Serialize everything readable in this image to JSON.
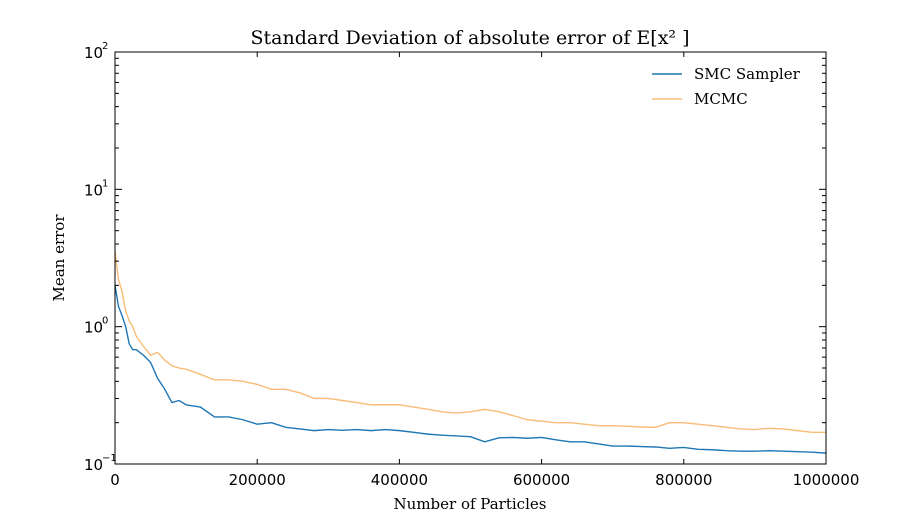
{
  "chart_data": {
    "type": "line",
    "title": "Standard Deviation of absolute error of E[x² ]",
    "xlabel": "Number of Particles",
    "ylabel": "Mean error",
    "xlim": [
      0,
      1000000
    ],
    "ylim": [
      0.1,
      100
    ],
    "yscale": "log",
    "x_ticks": [
      0,
      200000,
      400000,
      600000,
      800000,
      1000000
    ],
    "x_tick_labels": [
      "0",
      "200000",
      "400000",
      "600000",
      "800000",
      "1000000"
    ],
    "y_ticks": [
      {
        "value": 0.1,
        "base": "10",
        "exp": "−1"
      },
      {
        "value": 1,
        "base": "10",
        "exp": "0"
      },
      {
        "value": 10,
        "base": "10",
        "exp": "1"
      },
      {
        "value": 100,
        "base": "10",
        "exp": "2"
      }
    ],
    "grid": false,
    "legend_position": "top-right",
    "series": [
      {
        "name": "SMC Sampler",
        "color": "#1f77b4",
        "x": [
          0,
          5000,
          10000,
          15000,
          20000,
          25000,
          30000,
          40000,
          50000,
          60000,
          70000,
          80000,
          90000,
          100000,
          120000,
          140000,
          160000,
          180000,
          200000,
          220000,
          240000,
          260000,
          280000,
          300000,
          320000,
          340000,
          360000,
          380000,
          400000,
          420000,
          440000,
          460000,
          480000,
          500000,
          520000,
          540000,
          560000,
          580000,
          600000,
          620000,
          640000,
          660000,
          680000,
          700000,
          720000,
          740000,
          760000,
          780000,
          800000,
          820000,
          840000,
          860000,
          880000,
          900000,
          920000,
          940000,
          960000,
          980000,
          1000000
        ],
        "values": [
          2.0,
          1.4,
          1.2,
          1.0,
          0.75,
          0.68,
          0.68,
          0.62,
          0.55,
          0.42,
          0.35,
          0.28,
          0.29,
          0.27,
          0.26,
          0.22,
          0.22,
          0.21,
          0.195,
          0.2,
          0.185,
          0.18,
          0.175,
          0.178,
          0.176,
          0.178,
          0.175,
          0.178,
          0.175,
          0.17,
          0.165,
          0.162,
          0.16,
          0.158,
          0.145,
          0.155,
          0.156,
          0.154,
          0.156,
          0.15,
          0.145,
          0.145,
          0.14,
          0.135,
          0.135,
          0.134,
          0.133,
          0.13,
          0.132,
          0.128,
          0.127,
          0.125,
          0.124,
          0.124,
          0.125,
          0.124,
          0.123,
          0.122,
          0.12
        ]
      },
      {
        "name": "MCMC",
        "color": "#f9bc78",
        "x": [
          0,
          5000,
          10000,
          15000,
          20000,
          25000,
          30000,
          40000,
          50000,
          60000,
          70000,
          80000,
          90000,
          100000,
          120000,
          140000,
          160000,
          180000,
          200000,
          220000,
          240000,
          260000,
          280000,
          300000,
          320000,
          340000,
          360000,
          380000,
          400000,
          420000,
          440000,
          460000,
          480000,
          500000,
          520000,
          540000,
          560000,
          580000,
          600000,
          620000,
          640000,
          660000,
          680000,
          700000,
          720000,
          740000,
          760000,
          780000,
          800000,
          820000,
          840000,
          860000,
          880000,
          900000,
          920000,
          940000,
          960000,
          980000,
          1000000
        ],
        "values": [
          3.5,
          2.2,
          1.8,
          1.3,
          1.1,
          1.0,
          0.85,
          0.72,
          0.62,
          0.65,
          0.57,
          0.52,
          0.5,
          0.49,
          0.45,
          0.41,
          0.41,
          0.4,
          0.38,
          0.35,
          0.35,
          0.33,
          0.3,
          0.3,
          0.29,
          0.28,
          0.27,
          0.27,
          0.27,
          0.26,
          0.25,
          0.24,
          0.235,
          0.24,
          0.25,
          0.24,
          0.225,
          0.21,
          0.205,
          0.2,
          0.2,
          0.195,
          0.19,
          0.19,
          0.188,
          0.186,
          0.185,
          0.2,
          0.2,
          0.195,
          0.19,
          0.185,
          0.18,
          0.178,
          0.182,
          0.18,
          0.175,
          0.17,
          0.17
        ]
      }
    ]
  }
}
